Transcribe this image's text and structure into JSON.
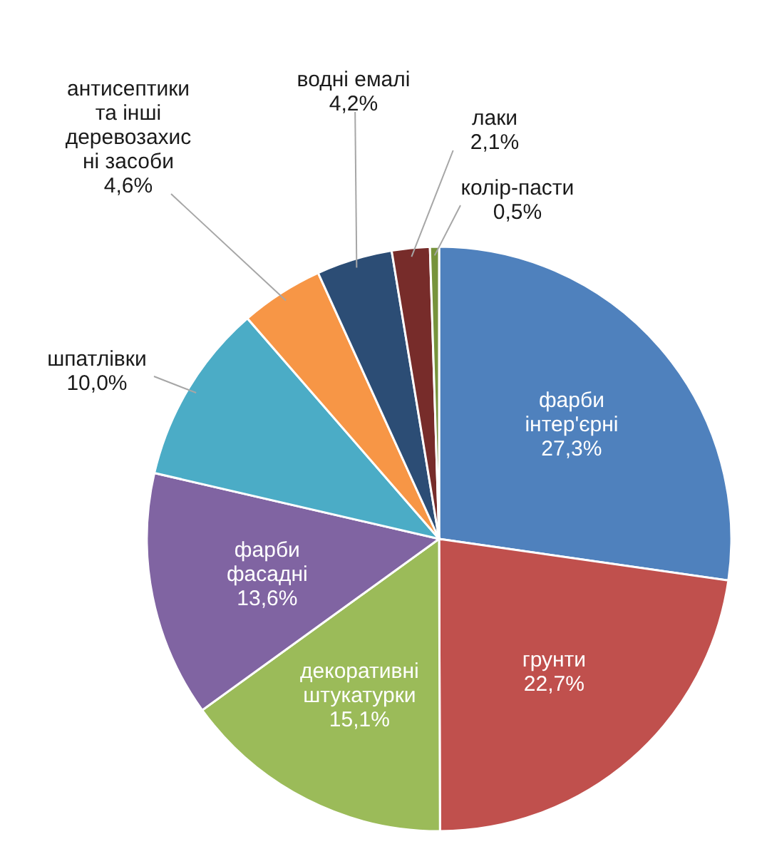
{
  "chart_data": {
    "type": "pie",
    "categories": [
      "фарби\nінтер'єрні",
      "грунти",
      "декоративні\nштукатурки",
      "фарби\nфасадні",
      "шпатлівки",
      "антисептики\nта інші\nдеревозахис\nні засоби",
      "водні емалі",
      "лаки",
      "колір-пасти"
    ],
    "values": [
      27.3,
      22.7,
      15.1,
      13.6,
      10.0,
      4.6,
      4.2,
      2.1,
      0.5
    ],
    "value_labels": [
      "27,3%",
      "22,7%",
      "15,1%",
      "13,6%",
      "10,0%",
      "4,6%",
      "4,2%",
      "2,1%",
      "0,5%"
    ],
    "colors": [
      "#4f81bd",
      "#c0504d",
      "#9bbb59",
      "#8064a2",
      "#4bacc6",
      "#f79646",
      "#2c4d75",
      "#772c2a",
      "#77933c"
    ]
  }
}
